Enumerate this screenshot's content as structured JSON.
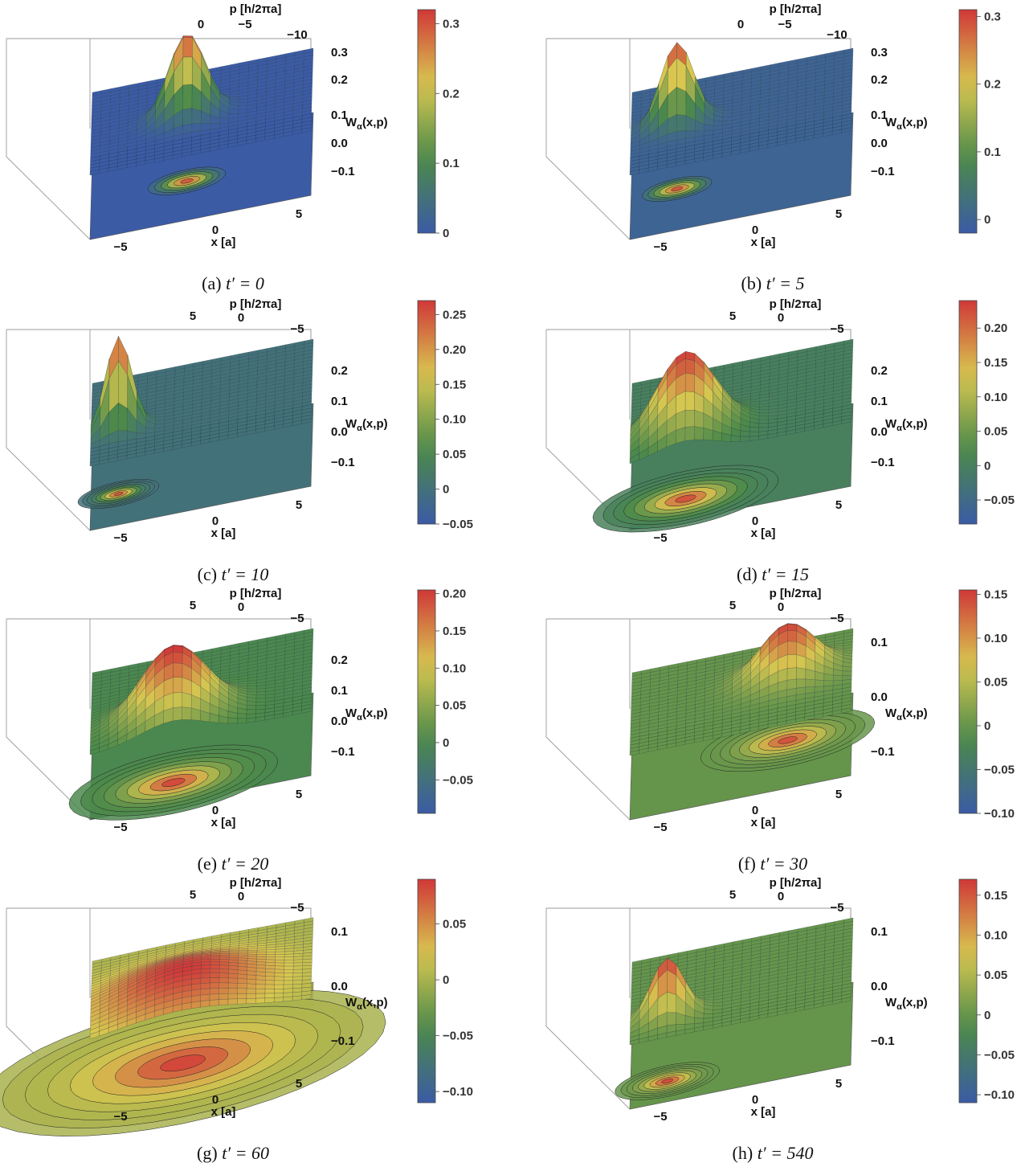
{
  "figure": {
    "axis_labels": {
      "p": "p [h/2πa]",
      "x": "x [a]",
      "w": "Wα(x,p)",
      "w_main": "W",
      "w_sub": "α",
      "w_args": "(x,p)"
    },
    "colors": {
      "low": "#3b5ba5",
      "mid_low": "#4c8a4a",
      "mid": "#d8c750",
      "high": "#d03838",
      "box": "#9a9a9a",
      "grid": "#20303a"
    },
    "panels": [
      {
        "id": "a",
        "caption_label": "(a)",
        "caption_eq": "t′ = 0",
        "p_ticks": [
          "0",
          "−5",
          "−10"
        ],
        "x_ticks": [
          "−5",
          "0",
          "5"
        ],
        "w_ticks": [
          "0.3",
          "0.2",
          "0.1",
          "0.0",
          "−0.1"
        ],
        "colorbar": {
          "ticks": [
            0.3,
            0.2,
            0.1,
            0
          ],
          "tick_labels": [
            "0.3",
            "0.2",
            "0.1",
            "0"
          ],
          "min": 0,
          "max": 0.32
        },
        "peak": {
          "x": -0.8,
          "p": 0.3,
          "height": 0.32,
          "width": 1.0
        }
      },
      {
        "id": "b",
        "caption_label": "(b)",
        "caption_eq": "t′ = 5",
        "p_ticks": [
          "0",
          "−5",
          "−10"
        ],
        "x_ticks": [
          "−5",
          "0",
          "5"
        ],
        "w_ticks": [
          "0.3",
          "0.2",
          "0.1",
          "0.0",
          "−0.1"
        ],
        "colorbar": {
          "ticks": [
            0.3,
            0.2,
            0.1,
            0
          ],
          "tick_labels": [
            "0.3",
            "0.2",
            "0.1",
            "0"
          ],
          "min": -0.02,
          "max": 0.31
        },
        "peak": {
          "x": -3.5,
          "p": 0.0,
          "height": 0.31,
          "width": 0.9
        }
      },
      {
        "id": "c",
        "caption_label": "(c)",
        "caption_eq": "t′ = 10",
        "p_ticks": [
          "5",
          "0",
          "−5"
        ],
        "x_ticks": [
          "−5",
          "0",
          "5"
        ],
        "w_ticks": [
          "0.2",
          "0.1",
          "0.0",
          "−0.1"
        ],
        "colorbar": {
          "ticks": [
            0.25,
            0.2,
            0.15,
            0.1,
            0.05,
            0,
            -0.05
          ],
          "tick_labels": [
            "0.25",
            "0.20",
            "0.15",
            "0.10",
            "0.05",
            "0",
            "−0.05"
          ],
          "min": -0.05,
          "max": 0.27
        },
        "peak": {
          "x": -4.5,
          "p": 1.5,
          "height": 0.27,
          "width": 0.7
        }
      },
      {
        "id": "d",
        "caption_label": "(d)",
        "caption_eq": "t′ = 15",
        "p_ticks": [
          "5",
          "0",
          "−5"
        ],
        "x_ticks": [
          "−5",
          "0",
          "5"
        ],
        "w_ticks": [
          "0.2",
          "0.1",
          "0.0",
          "−0.1"
        ],
        "colorbar": {
          "ticks": [
            0.2,
            0.15,
            0.1,
            0.05,
            0,
            -0.05
          ],
          "tick_labels": [
            "0.20",
            "0.15",
            "0.10",
            "0.05",
            "0",
            "−0.05"
          ],
          "min": -0.085,
          "max": 0.24
        },
        "peak": {
          "x": -3.0,
          "p": 3.0,
          "height": 0.24,
          "width": 1.6
        }
      },
      {
        "id": "e",
        "caption_label": "(e)",
        "caption_eq": "t′ = 20",
        "p_ticks": [
          "5",
          "0",
          "−5"
        ],
        "x_ticks": [
          "−5",
          "0",
          "5"
        ],
        "w_ticks": [
          "0.2",
          "0.1",
          "0.0",
          "−0.1"
        ],
        "colorbar": {
          "ticks": [
            0.2,
            0.15,
            0.1,
            0.05,
            0,
            -0.05
          ],
          "tick_labels": [
            "0.20",
            "0.15",
            "0.10",
            "0.05",
            "0",
            "−0.05"
          ],
          "min": -0.095,
          "max": 0.205
        },
        "peak": {
          "x": -1.5,
          "p": 3.0,
          "height": 0.21,
          "width": 1.8
        }
      },
      {
        "id": "f",
        "caption_label": "(f)",
        "caption_eq": "t′ = 30",
        "p_ticks": [
          "5",
          "0",
          "−5"
        ],
        "x_ticks": [
          "−5",
          "0",
          "5"
        ],
        "w_ticks": [
          "0.1",
          "0.0",
          "−0.1"
        ],
        "colorbar": {
          "ticks": [
            0.15,
            0.1,
            0.05,
            0,
            -0.05,
            -0.1
          ],
          "tick_labels": [
            "0.15",
            "0.10",
            "0.05",
            "0",
            "−0.05",
            "−0.10"
          ],
          "min": -0.1,
          "max": 0.155
        },
        "peak": {
          "x": 2.5,
          "p": -1.0,
          "height": 0.15,
          "width": 1.5
        }
      },
      {
        "id": "g",
        "caption_label": "(g)",
        "caption_eq": "t′ = 60",
        "p_ticks": [
          "5",
          "0",
          "−5"
        ],
        "x_ticks": [
          "−5",
          "0",
          "5"
        ],
        "w_ticks": [
          "0.1",
          "0.0",
          "−0.1"
        ],
        "colorbar": {
          "ticks": [
            0.05,
            0,
            -0.05,
            -0.1
          ],
          "tick_labels": [
            "0.05",
            "0",
            "−0.05",
            "−0.10"
          ],
          "min": -0.11,
          "max": 0.09
        },
        "peak": {
          "x": -1.0,
          "p": 2.0,
          "height": 0.09,
          "width": 3.5
        }
      },
      {
        "id": "h",
        "caption_label": "(h)",
        "caption_eq": "t′ = 540",
        "p_ticks": [
          "5",
          "0",
          "−5"
        ],
        "x_ticks": [
          "−5",
          "0",
          "5"
        ],
        "w_ticks": [
          "0.1",
          "0.0",
          "−0.1"
        ],
        "colorbar": {
          "ticks": [
            0.15,
            0.1,
            0.05,
            0,
            -0.05,
            -0.1
          ],
          "tick_labels": [
            "0.15",
            "0.10",
            "0.05",
            "0",
            "−0.05",
            "−0.10"
          ],
          "min": -0.11,
          "max": 0.17
        },
        "peak": {
          "x": -4.0,
          "p": 3.0,
          "height": 0.17,
          "width": 0.9
        }
      }
    ]
  }
}
